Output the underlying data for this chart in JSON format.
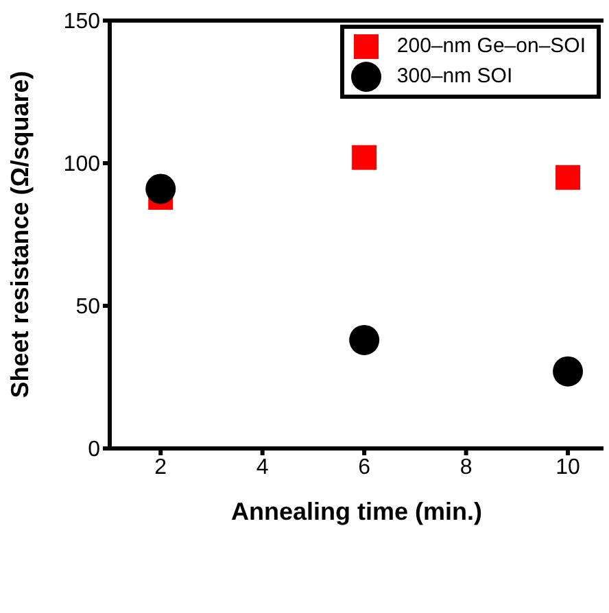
{
  "chart_data": {
    "type": "scatter",
    "xlabel": "Annealing time (min.)",
    "ylabel": "Sheet resistance (Ω/square)",
    "x": [
      2,
      6,
      10
    ],
    "series": [
      {
        "name": "200–nm Ge–on–SOI",
        "color": "#ff0000",
        "marker": "square",
        "values": [
          88,
          102,
          95
        ]
      },
      {
        "name": "300–nm SOI",
        "color": "#000000",
        "marker": "circle",
        "values": [
          91,
          38,
          27
        ]
      }
    ],
    "xlim": [
      1,
      10.7
    ],
    "xticks": [
      2,
      4,
      6,
      8,
      10
    ],
    "ylim": [
      0,
      150
    ],
    "yticks": [
      0,
      50,
      100,
      150
    ],
    "grid": false,
    "legend": "top right"
  }
}
